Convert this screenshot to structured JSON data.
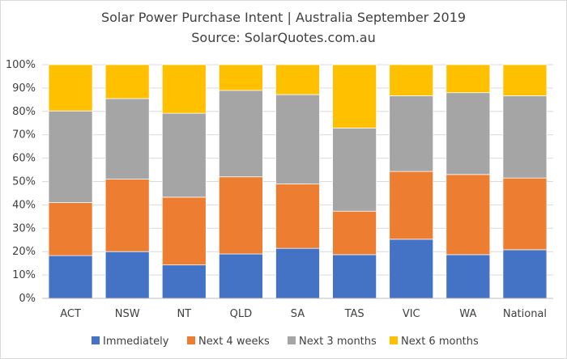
{
  "chart_data": {
    "type": "bar",
    "stacked": true,
    "percent": true,
    "title": "Solar Power Purchase Intent | Australia September 2019",
    "subtitle": "Source: SolarQuotes.com.au",
    "xlabel": "",
    "ylabel": "",
    "ylim": [
      0,
      100
    ],
    "yticks": [
      "0%",
      "10%",
      "20%",
      "30%",
      "40%",
      "50%",
      "60%",
      "70%",
      "80%",
      "90%",
      "100%"
    ],
    "grid": true,
    "legend_position": "bottom",
    "categories": [
      "ACT",
      "NSW",
      "NT",
      "QLD",
      "SA",
      "TAS",
      "VIC",
      "WA",
      "National"
    ],
    "series": [
      {
        "name": "Immediately",
        "color": "#4472C4",
        "values": [
          18.3,
          20.0,
          14.3,
          19.0,
          21.4,
          18.7,
          25.3,
          18.7,
          20.8
        ]
      },
      {
        "name": "Next 4 weeks",
        "color": "#ED7D31",
        "values": [
          22.7,
          31.0,
          29.0,
          33.0,
          27.6,
          18.6,
          29.0,
          34.3,
          30.7
        ]
      },
      {
        "name": "Next 3 months",
        "color": "#A5A5A5",
        "values": [
          39.2,
          34.5,
          35.9,
          37.0,
          38.2,
          35.6,
          32.4,
          35.0,
          35.2
        ]
      },
      {
        "name": "Next 6 months",
        "color": "#FFC000",
        "values": [
          19.8,
          14.5,
          20.8,
          11.0,
          12.8,
          27.1,
          13.3,
          12.0,
          13.3
        ]
      }
    ]
  }
}
